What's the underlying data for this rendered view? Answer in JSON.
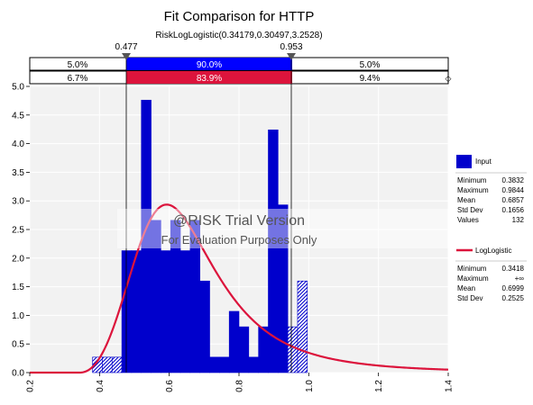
{
  "chart_data": {
    "type": "histogram",
    "title": "Fit Comparison for HTTP",
    "subtitle": "RiskLogLogistic(0.34179,0.30497,3.2528)",
    "xlim": [
      0.2,
      1.4
    ],
    "ylim": [
      0.0,
      5.0
    ],
    "x_ticks": [
      "0.2",
      "0.4",
      "0.6",
      "0.8",
      "1.0",
      "1.2",
      "1.4"
    ],
    "y_ticks": [
      "0.0",
      "0.5",
      "1.0",
      "1.5",
      "2.0",
      "2.5",
      "3.0",
      "3.5",
      "4.0",
      "4.5",
      "5.0"
    ],
    "grid": true,
    "delimiters": {
      "left": "0.477",
      "right": "0.953"
    },
    "percent_bands": {
      "input": [
        "5.0%",
        "90.0%",
        "5.0%"
      ],
      "fit": [
        "6.7%",
        "83.9%",
        "9.4%"
      ]
    },
    "histogram": {
      "name": "Input",
      "bin_width": 0.028,
      "bins": [
        {
          "x0": 0.38,
          "y": 0.27
        },
        {
          "x0": 0.408,
          "y": 0.27
        },
        {
          "x0": 0.436,
          "y": 0.27
        },
        {
          "x0": 0.464,
          "y": 2.13
        },
        {
          "x0": 0.492,
          "y": 2.13
        },
        {
          "x0": 0.52,
          "y": 4.76
        },
        {
          "x0": 0.548,
          "y": 2.66
        },
        {
          "x0": 0.576,
          "y": 2.13
        },
        {
          "x0": 0.604,
          "y": 2.66
        },
        {
          "x0": 0.632,
          "y": 2.13
        },
        {
          "x0": 0.66,
          "y": 2.66
        },
        {
          "x0": 0.688,
          "y": 1.6
        },
        {
          "x0": 0.716,
          "y": 0.27
        },
        {
          "x0": 0.744,
          "y": 0.27
        },
        {
          "x0": 0.772,
          "y": 1.07
        },
        {
          "x0": 0.8,
          "y": 0.8
        },
        {
          "x0": 0.828,
          "y": 0.27
        },
        {
          "x0": 0.856,
          "y": 0.8
        },
        {
          "x0": 0.884,
          "y": 4.24
        },
        {
          "x0": 0.912,
          "y": 2.93
        },
        {
          "x0": 0.94,
          "y": 0.8
        },
        {
          "x0": 0.968,
          "y": 1.6
        }
      ]
    },
    "fit_curve": {
      "name": "LogLogistic",
      "gamma": 0.34179,
      "beta": 0.30497,
      "alpha": 3.2528
    },
    "legend": {
      "position": "right",
      "input": {
        "label": "Input",
        "stats": [
          {
            "label": "Minimum",
            "value": "0.3832"
          },
          {
            "label": "Maximum",
            "value": "0.9844"
          },
          {
            "label": "Mean",
            "value": "0.6857"
          },
          {
            "label": "Std Dev",
            "value": "0.1656"
          },
          {
            "label": "Values",
            "value": "132"
          }
        ]
      },
      "fit": {
        "label": "LogLogistic",
        "stats": [
          {
            "label": "Minimum",
            "value": "0.3418"
          },
          {
            "label": "Maximum",
            "value": "+∞"
          },
          {
            "label": "Mean",
            "value": "0.6999"
          },
          {
            "label": "Std Dev",
            "value": "0.2525"
          }
        ]
      }
    },
    "watermark": [
      "@RISK Trial Version",
      "For Evaluation Purposes Only"
    ],
    "colors": {
      "histogram": "#0000cc",
      "histogram_light": "#8c8ce6",
      "fit_line": "#dc143c",
      "band_input": "#0000ff",
      "band_fit": "#dc143c",
      "plot_bg": "#f2f2f2"
    }
  }
}
